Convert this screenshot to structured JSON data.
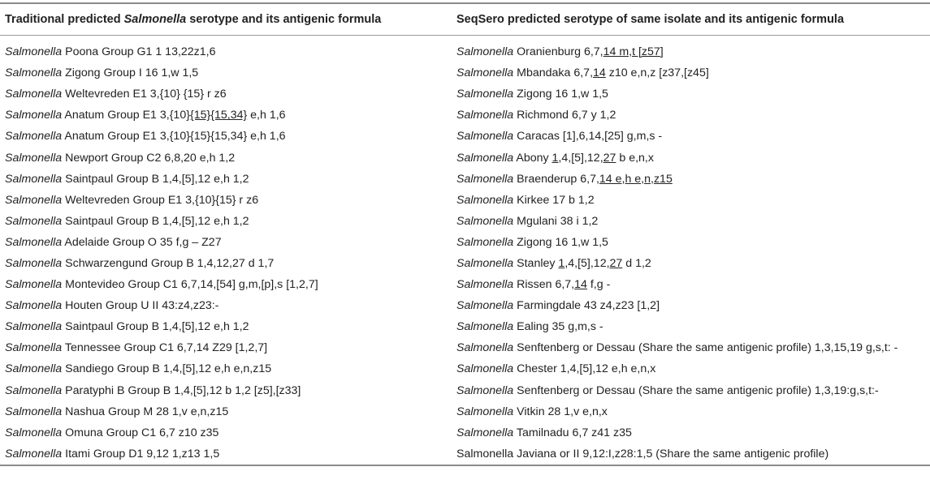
{
  "table": {
    "headers": [
      {
        "pre": "Traditional predicted ",
        "italic": "Salmonella",
        "post": " serotype and its antigenic formula"
      },
      {
        "pre": "SeqSero predicted serotype of same isolate and its antigenic formula",
        "italic": "",
        "post": ""
      }
    ],
    "genus": "Salmonella",
    "rows": [
      {
        "trad": " Poona Group G1 1 13,22z1,6",
        "seq": [
          " Oranienburg 6,7,",
          {
            "u": "14 m,t [z57]"
          }
        ]
      },
      {
        "trad": " Zigong Group I 16 1,w 1,5",
        "seq": [
          " Mbandaka 6,7,",
          {
            "u": "14"
          },
          " z10 e,n,z [z37,[z45]"
        ]
      },
      {
        "trad": " Weltevreden E1 3,{10} {15} r z6",
        "seq": [
          " Zigong 16 1,w 1,5"
        ]
      },
      {
        "trad": [
          " Anatum Group E1 3,{10}",
          {
            "u": "{15}"
          },
          {
            "u": "{15,34}"
          },
          " e,h 1,6"
        ],
        "seq": [
          " Richmond 6,7 y 1,2"
        ]
      },
      {
        "trad": " Anatum Group E1 3,{10}{15}{15,34} e,h 1,6",
        "seq": [
          " Caracas [1],6,14,[25] g,m,s -"
        ]
      },
      {
        "trad": " Newport Group C2 6,8,20 e,h 1,2",
        "seq": [
          " Abony ",
          {
            "u": "1"
          },
          ",4,[5],12,",
          {
            "u": "27"
          },
          " b e,n,x"
        ]
      },
      {
        "trad": " Saintpaul Group B 1,4,[5],12 e,h 1,2",
        "seq": [
          " Braenderup 6,7,",
          {
            "u": "14 e,h e,n,z15"
          }
        ]
      },
      {
        "trad": " Weltevreden Group E1 3,{10}{15} r z6",
        "seq": [
          " Kirkee 17 b 1,2"
        ]
      },
      {
        "trad": " Saintpaul Group B 1,4,[5],12 e,h 1,2",
        "seq": [
          " Mgulani 38 i 1,2"
        ]
      },
      {
        "trad": " Adelaide Group O 35 f,g – Z27",
        "seq": [
          " Zigong 16 1,w 1,5"
        ]
      },
      {
        "trad": " Schwarzengund Group B 1,4,12,27 d 1,7",
        "seq": [
          " Stanley ",
          {
            "u": "1"
          },
          ",4,[5],12,",
          {
            "u": "27"
          },
          " d 1,2"
        ]
      },
      {
        "trad": " Montevideo Group C1 6,7,14,[54] g,m,[p],s [1,2,7]",
        "seq": [
          " Rissen 6,7,",
          {
            "u": "14"
          },
          " f,g -"
        ]
      },
      {
        "trad": " Houten Group U II 43:z4,z23:-",
        "seq": [
          " Farmingdale 43 z4,z23 [1,2]"
        ]
      },
      {
        "trad": " Saintpaul Group B 1,4,[5],12 e,h 1,2",
        "seq": [
          " Ealing 35 g,m,s -"
        ]
      },
      {
        "trad": " Tennessee Group C1 6,7,14 Z29 [1,2,7]",
        "seq": [
          " Senftenberg or Dessau (Share the same antigenic profile) 1,3,15,19 g,s,t: -"
        ]
      },
      {
        "trad": " Sandiego Group B 1,4,[5],12 e,h e,n,z15",
        "seq": [
          " Chester 1,4,[5],12 e,h e,n,x"
        ]
      },
      {
        "trad": " Paratyphi B Group B 1,4,[5],12 b 1,2 [z5],[z33]",
        "seq": [
          " Senftenberg or Dessau (Share the same antigenic profile) 1,3,19:g,s,t:-"
        ]
      },
      {
        "trad": " Nashua Group M 28 1,v e,n,z15",
        "seq": [
          " Vitkin 28 1,v e,n,x"
        ]
      },
      {
        "trad": " Omuna Group C1 6,7 z10 z35",
        "seq": [
          " Tamilnadu 6,7 z41 z35"
        ]
      },
      {
        "trad": " Itami Group D1 9,12 1,z13 1,5",
        "seq_plain": "Salmonella Javiana or II 9,12:I,z28:1,5 (Share the same antigenic profile)"
      }
    ]
  }
}
